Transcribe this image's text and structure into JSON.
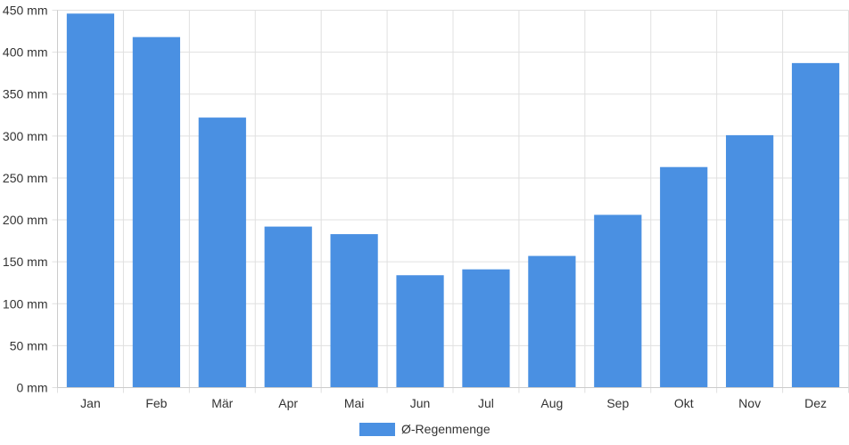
{
  "chart_data": {
    "type": "bar",
    "categories": [
      "Jan",
      "Feb",
      "Mär",
      "Apr",
      "Mai",
      "Jun",
      "Jul",
      "Aug",
      "Sep",
      "Okt",
      "Nov",
      "Dez"
    ],
    "series": [
      {
        "name": "Ø-Regenmenge",
        "values": [
          446,
          418,
          322,
          192,
          183,
          134,
          141,
          157,
          206,
          263,
          301,
          387
        ],
        "color": "#4a90e2"
      }
    ],
    "y_unit_suffix": " mm",
    "ylim": [
      0,
      450
    ],
    "yticks": [
      0,
      50,
      100,
      150,
      200,
      250,
      300,
      350,
      400,
      450
    ],
    "y_tick_labels": [
      "0 mm",
      "50 mm",
      "100 mm",
      "150 mm",
      "200 mm",
      "250 mm",
      "300 mm",
      "350 mm",
      "400 mm",
      "450 mm"
    ],
    "grid": true,
    "legend_position": "bottom-center"
  },
  "colors": {
    "bar": "#4a90e2",
    "grid": "#e0e0e0",
    "axis": "#cccccc",
    "text": "#333333"
  }
}
